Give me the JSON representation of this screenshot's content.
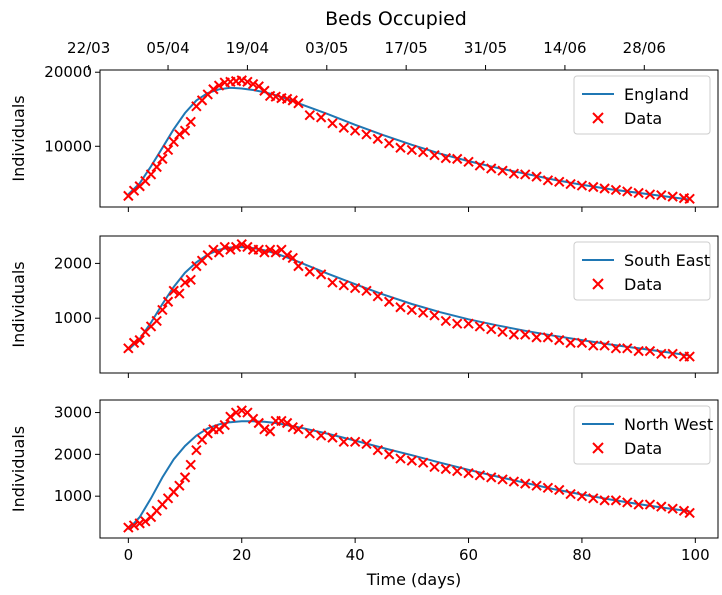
{
  "figure": {
    "title": "Beds Occupied",
    "top_axis_ticks": [
      "22/03",
      "05/04",
      "19/04",
      "03/05",
      "17/05",
      "31/05",
      "14/06",
      "28/06"
    ],
    "top_axis_tick_days": [
      -7,
      7,
      21,
      35,
      49,
      63,
      77,
      91
    ],
    "xlabel": "Time (days)",
    "colors": {
      "model_line": "#1f77b4",
      "data_marker": "#ff0000"
    }
  },
  "chart_data": [
    {
      "type": "line",
      "panel": "England",
      "xlabel": "",
      "ylabel": "Individuals",
      "xlim": [
        -5,
        104
      ],
      "ylim": [
        1800,
        20300
      ],
      "yticks": [
        10000,
        20000
      ],
      "xticks": [
        0,
        20,
        40,
        60,
        80,
        100
      ],
      "legend_position": "top-right",
      "series": [
        {
          "name": "England",
          "kind": "line",
          "x": [
            0,
            2,
            4,
            6,
            8,
            10,
            12,
            14,
            16,
            18,
            20,
            22,
            24,
            26,
            28,
            30,
            35,
            40,
            45,
            50,
            55,
            60,
            65,
            70,
            75,
            80,
            85,
            90,
            95,
            99
          ],
          "values": [
            3500,
            5000,
            7300,
            9800,
            12300,
            14500,
            16200,
            17200,
            17700,
            17900,
            17800,
            17600,
            17300,
            16900,
            16400,
            15800,
            14400,
            12900,
            11500,
            10200,
            9000,
            8000,
            7100,
            6300,
            5500,
            4800,
            4200,
            3700,
            3200,
            2800
          ]
        },
        {
          "name": "Data",
          "kind": "scatter",
          "x": [
            0,
            1,
            2,
            3,
            4,
            5,
            6,
            7,
            8,
            9,
            10,
            11,
            12,
            13,
            14,
            15,
            16,
            17,
            18,
            19,
            20,
            21,
            22,
            23,
            24,
            25,
            26,
            27,
            28,
            29,
            30,
            32,
            34,
            36,
            38,
            40,
            42,
            44,
            46,
            48,
            50,
            52,
            54,
            56,
            58,
            60,
            62,
            64,
            66,
            68,
            70,
            72,
            74,
            76,
            78,
            80,
            82,
            84,
            86,
            88,
            90,
            92,
            94,
            96,
            98,
            99
          ],
          "values": [
            3300,
            4000,
            4600,
            5300,
            6200,
            7200,
            8300,
            9500,
            10600,
            11600,
            12100,
            13300,
            15400,
            16200,
            17000,
            17700,
            18200,
            18600,
            18700,
            18800,
            18900,
            18700,
            18400,
            18100,
            17500,
            16800,
            16700,
            16500,
            16400,
            16200,
            15800,
            14200,
            13900,
            13100,
            12500,
            12100,
            11600,
            11000,
            10400,
            9800,
            9500,
            9200,
            8800,
            8400,
            8300,
            7900,
            7400,
            7000,
            6700,
            6300,
            6200,
            5900,
            5400,
            5200,
            4900,
            4700,
            4500,
            4300,
            4100,
            3900,
            3700,
            3500,
            3400,
            3200,
            3000,
            2900
          ]
        }
      ]
    },
    {
      "type": "line",
      "panel": "South East",
      "xlabel": "",
      "ylabel": "Individuals",
      "xlim": [
        -5,
        104
      ],
      "ylim": [
        0,
        2500
      ],
      "yticks": [
        1000,
        2000
      ],
      "xticks": [
        0,
        20,
        40,
        60,
        80,
        100
      ],
      "legend_position": "top-right",
      "series": [
        {
          "name": "South East",
          "kind": "line",
          "x": [
            0,
            2,
            4,
            6,
            8,
            10,
            12,
            14,
            16,
            18,
            20,
            22,
            24,
            26,
            28,
            30,
            35,
            40,
            45,
            50,
            55,
            60,
            65,
            70,
            75,
            80,
            85,
            90,
            95,
            99
          ],
          "values": [
            420,
            620,
            920,
            1260,
            1570,
            1830,
            2020,
            2160,
            2250,
            2290,
            2300,
            2280,
            2240,
            2180,
            2110,
            2030,
            1820,
            1620,
            1430,
            1260,
            1110,
            980,
            870,
            770,
            680,
            600,
            520,
            450,
            380,
            320
          ]
        },
        {
          "name": "Data",
          "kind": "scatter",
          "x": [
            0,
            1,
            2,
            3,
            4,
            5,
            6,
            7,
            8,
            9,
            10,
            11,
            12,
            13,
            14,
            15,
            16,
            17,
            18,
            19,
            20,
            21,
            22,
            23,
            24,
            25,
            26,
            27,
            28,
            29,
            30,
            32,
            34,
            36,
            38,
            40,
            42,
            44,
            46,
            48,
            50,
            52,
            54,
            56,
            58,
            60,
            62,
            64,
            66,
            68,
            70,
            72,
            74,
            76,
            78,
            80,
            82,
            84,
            86,
            88,
            90,
            92,
            94,
            96,
            98,
            99
          ],
          "values": [
            450,
            550,
            600,
            750,
            850,
            950,
            1150,
            1300,
            1500,
            1450,
            1650,
            1700,
            1950,
            2050,
            2150,
            2250,
            2200,
            2300,
            2250,
            2300,
            2350,
            2300,
            2250,
            2250,
            2200,
            2250,
            2200,
            2250,
            2150,
            2100,
            1950,
            1850,
            1800,
            1650,
            1600,
            1550,
            1500,
            1400,
            1300,
            1200,
            1150,
            1100,
            1050,
            950,
            900,
            900,
            850,
            800,
            750,
            700,
            700,
            650,
            650,
            600,
            550,
            550,
            500,
            500,
            450,
            450,
            400,
            400,
            350,
            350,
            300,
            300
          ]
        }
      ]
    },
    {
      "type": "line",
      "panel": "North West",
      "xlabel": "Time (days)",
      "ylabel": "Individuals",
      "xlim": [
        -5,
        104
      ],
      "ylim": [
        0,
        3300
      ],
      "yticks": [
        1000,
        2000,
        3000
      ],
      "xticks": [
        0,
        20,
        40,
        60,
        80,
        100
      ],
      "legend_position": "top-right",
      "series": [
        {
          "name": "North West",
          "kind": "line",
          "x": [
            0,
            2,
            4,
            6,
            8,
            10,
            12,
            14,
            16,
            18,
            20,
            22,
            24,
            26,
            28,
            30,
            35,
            40,
            45,
            50,
            55,
            60,
            65,
            70,
            75,
            80,
            85,
            90,
            95,
            99
          ],
          "values": [
            200,
            500,
            950,
            1450,
            1880,
            2200,
            2450,
            2620,
            2720,
            2770,
            2790,
            2790,
            2780,
            2750,
            2700,
            2650,
            2500,
            2330,
            2150,
            1980,
            1800,
            1630,
            1470,
            1320,
            1170,
            1040,
            920,
            810,
            710,
            640
          ]
        },
        {
          "name": "Data",
          "kind": "scatter",
          "x": [
            0,
            1,
            2,
            3,
            4,
            5,
            6,
            7,
            8,
            9,
            10,
            11,
            12,
            13,
            14,
            15,
            16,
            17,
            18,
            19,
            20,
            21,
            22,
            23,
            24,
            25,
            26,
            27,
            28,
            29,
            30,
            32,
            34,
            36,
            38,
            40,
            42,
            44,
            46,
            48,
            50,
            52,
            54,
            56,
            58,
            60,
            62,
            64,
            66,
            68,
            70,
            72,
            74,
            76,
            78,
            80,
            82,
            84,
            86,
            88,
            90,
            92,
            94,
            96,
            98,
            99
          ],
          "values": [
            250,
            300,
            350,
            400,
            500,
            650,
            800,
            950,
            1100,
            1250,
            1450,
            1750,
            2100,
            2350,
            2500,
            2600,
            2600,
            2700,
            2900,
            3000,
            3050,
            3000,
            2850,
            2750,
            2600,
            2550,
            2800,
            2800,
            2750,
            2650,
            2600,
            2500,
            2450,
            2400,
            2300,
            2300,
            2250,
            2100,
            2000,
            1900,
            1850,
            1800,
            1700,
            1650,
            1600,
            1550,
            1500,
            1450,
            1400,
            1350,
            1300,
            1250,
            1200,
            1150,
            1050,
            1000,
            950,
            900,
            900,
            850,
            800,
            800,
            750,
            700,
            650,
            600
          ]
        }
      ]
    }
  ]
}
